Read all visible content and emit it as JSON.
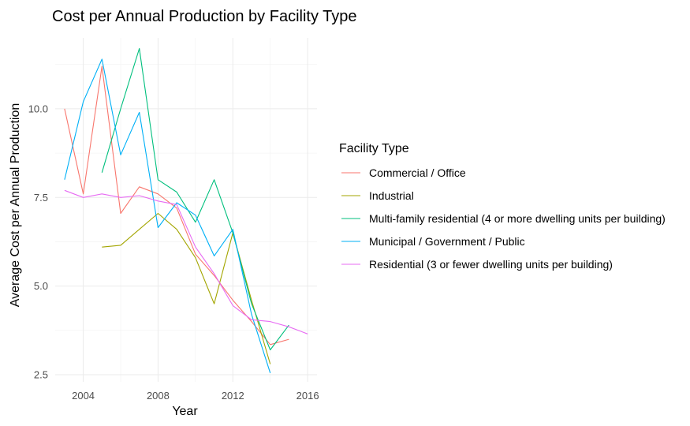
{
  "chart_data": {
    "type": "line",
    "title": "Cost per Annual Production by Facility Type",
    "xlabel": "Year",
    "ylabel": "Average Cost per Annual Production",
    "xlim": [
      2002.5,
      2016.5
    ],
    "ylim": [
      2.3,
      12.0
    ],
    "x_ticks": [
      2004,
      2008,
      2012,
      2016
    ],
    "x_tick_labels": [
      "2004",
      "2008",
      "2012",
      "2016"
    ],
    "y_ticks": [
      2.5,
      5.0,
      7.5,
      10.0
    ],
    "y_tick_labels": [
      "2.5",
      "5.0",
      "7.5",
      "10.0"
    ],
    "grid": true,
    "legend_title": "Facility Type",
    "legend_position": "right",
    "series": [
      {
        "name": "Commercial / Office",
        "color": "#F8766D",
        "points": [
          [
            2003,
            10.0
          ],
          [
            2004,
            7.6
          ],
          [
            2005,
            11.2
          ],
          [
            2006,
            7.05
          ],
          [
            2007,
            7.8
          ],
          [
            2008,
            7.6
          ],
          [
            2009,
            7.2
          ],
          [
            2010,
            5.9
          ],
          [
            2011,
            5.3
          ],
          [
            2012,
            4.6
          ],
          [
            2013,
            4.0
          ],
          [
            2014,
            3.35
          ],
          [
            2015,
            3.5
          ]
        ]
      },
      {
        "name": "Industrial",
        "color": "#A3A500",
        "points": [
          [
            2005,
            6.1
          ],
          [
            2006,
            6.15
          ],
          [
            2007,
            6.6
          ],
          [
            2008,
            7.05
          ],
          [
            2009,
            6.6
          ],
          [
            2010,
            5.8
          ],
          [
            2011,
            4.5
          ],
          [
            2012,
            6.5
          ],
          [
            2013,
            4.6
          ],
          [
            2014,
            2.8
          ]
        ]
      },
      {
        "name": "Multi-family residential (4 or more dwelling units per building)",
        "color": "#00BF7D",
        "points": [
          [
            2005,
            8.2
          ],
          [
            2006,
            10.0
          ],
          [
            2007,
            11.7
          ],
          [
            2008,
            8.0
          ],
          [
            2009,
            7.65
          ],
          [
            2010,
            6.8
          ],
          [
            2011,
            8.0
          ],
          [
            2012,
            6.5
          ],
          [
            2013,
            4.5
          ],
          [
            2014,
            3.2
          ],
          [
            2015,
            3.9
          ]
        ]
      },
      {
        "name": "Municipal / Government / Public",
        "color": "#00B0F6",
        "points": [
          [
            2003,
            8.0
          ],
          [
            2004,
            10.2
          ],
          [
            2005,
            11.4
          ],
          [
            2006,
            8.7
          ],
          [
            2007,
            9.9
          ],
          [
            2008,
            6.65
          ],
          [
            2009,
            7.35
          ],
          [
            2010,
            7.0
          ],
          [
            2011,
            5.85
          ],
          [
            2012,
            6.6
          ],
          [
            2013,
            4.2
          ],
          [
            2014,
            2.55
          ]
        ]
      },
      {
        "name": "Residential (3 or fewer dwelling units per building)",
        "color": "#E76BF3",
        "points": [
          [
            2003,
            7.7
          ],
          [
            2004,
            7.5
          ],
          [
            2005,
            7.6
          ],
          [
            2006,
            7.5
          ],
          [
            2007,
            7.55
          ],
          [
            2008,
            7.4
          ],
          [
            2009,
            7.3
          ],
          [
            2010,
            6.1
          ],
          [
            2011,
            5.35
          ],
          [
            2012,
            4.45
          ],
          [
            2013,
            4.05
          ],
          [
            2014,
            4.0
          ],
          [
            2015,
            3.85
          ],
          [
            2016,
            3.65
          ]
        ]
      }
    ]
  }
}
